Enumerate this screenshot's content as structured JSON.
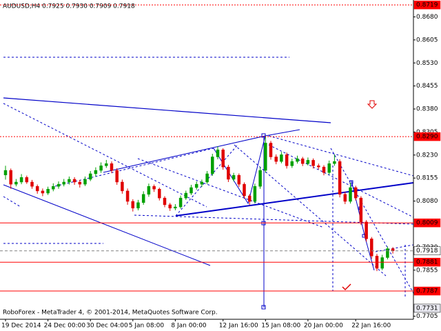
{
  "chart_data": {
    "type": "candlestick",
    "title": "AUDUSD,H4  0.7925 0.7930 0.7909 0.7918",
    "footer": "RoboForex - MetaTrader 4, © 2001-2014, MetaQuotes Software Corp.",
    "categories": [
      "19 Dec 2014",
      null,
      null,
      null,
      null,
      null,
      null,
      null,
      "24 Dec 00:00",
      null,
      null,
      null,
      null,
      null,
      null,
      null,
      "30 Dec 04:00",
      null,
      null,
      null,
      null,
      null,
      null,
      null,
      "5 Jan 08:00",
      null,
      null,
      null,
      null,
      null,
      null,
      null,
      "8 Jan 00:00",
      null,
      null,
      null,
      null,
      null,
      null,
      null,
      null,
      "12 Jan 16:00",
      null,
      null,
      null,
      null,
      null,
      null,
      null,
      "15 Jan 08:00",
      null,
      null,
      null,
      null,
      null,
      null,
      null,
      "20 Jan 00:00",
      null,
      null,
      null,
      null,
      null,
      null,
      null,
      null,
      "22 Jan 16:00",
      null,
      null,
      null,
      null,
      null,
      null,
      null
    ],
    "candles": [
      [
        0.8165,
        0.8195,
        0.815,
        0.818
      ],
      [
        0.818,
        0.8186,
        0.812,
        0.8135
      ],
      [
        0.8135,
        0.8152,
        0.8128,
        0.8142
      ],
      [
        0.8142,
        0.8168,
        0.8135,
        0.8157
      ],
      [
        0.8157,
        0.8163,
        0.8136,
        0.8142
      ],
      [
        0.8142,
        0.8149,
        0.812,
        0.8128
      ],
      [
        0.8128,
        0.8134,
        0.8104,
        0.8113
      ],
      [
        0.8113,
        0.8121,
        0.8096,
        0.8106
      ],
      [
        0.8106,
        0.8127,
        0.81,
        0.8119
      ],
      [
        0.8119,
        0.8138,
        0.8112,
        0.8128
      ],
      [
        0.8128,
        0.8144,
        0.812,
        0.8135
      ],
      [
        0.8135,
        0.8152,
        0.8128,
        0.8142
      ],
      [
        0.8142,
        0.816,
        0.8134,
        0.8151
      ],
      [
        0.8151,
        0.8158,
        0.8133,
        0.8142
      ],
      [
        0.8142,
        0.8149,
        0.8124,
        0.8135
      ],
      [
        0.8135,
        0.816,
        0.8129,
        0.8151
      ],
      [
        0.8151,
        0.8178,
        0.8145,
        0.8169
      ],
      [
        0.8169,
        0.819,
        0.816,
        0.818
      ],
      [
        0.818,
        0.8206,
        0.8172,
        0.8195
      ],
      [
        0.8195,
        0.8214,
        0.8188,
        0.8202
      ],
      [
        0.8202,
        0.8209,
        0.8171,
        0.818
      ],
      [
        0.818,
        0.8187,
        0.8133,
        0.8142
      ],
      [
        0.8142,
        0.815,
        0.8104,
        0.8113
      ],
      [
        0.8113,
        0.8121,
        0.8068,
        0.8079
      ],
      [
        0.8079,
        0.8086,
        0.8046,
        0.8057
      ],
      [
        0.8057,
        0.8084,
        0.805,
        0.8075
      ],
      [
        0.8075,
        0.8112,
        0.8068,
        0.8102
      ],
      [
        0.8102,
        0.8137,
        0.8094,
        0.8128
      ],
      [
        0.8128,
        0.8134,
        0.811,
        0.8119
      ],
      [
        0.8119,
        0.8124,
        0.8082,
        0.809
      ],
      [
        0.809,
        0.8096,
        0.806,
        0.8068
      ],
      [
        0.8068,
        0.8074,
        0.8048,
        0.8057
      ],
      [
        0.8057,
        0.807,
        0.805,
        0.8061
      ],
      [
        0.8061,
        0.8098,
        0.8055,
        0.809
      ],
      [
        0.809,
        0.8114,
        0.8084,
        0.8106
      ],
      [
        0.8106,
        0.8133,
        0.81,
        0.8124
      ],
      [
        0.8124,
        0.8144,
        0.8117,
        0.8135
      ],
      [
        0.8135,
        0.815,
        0.8126,
        0.8142
      ],
      [
        0.8142,
        0.8178,
        0.8136,
        0.8169
      ],
      [
        0.8169,
        0.8234,
        0.8162,
        0.8224
      ],
      [
        0.8224,
        0.8258,
        0.8216,
        0.8247
      ],
      [
        0.8247,
        0.8252,
        0.8182,
        0.8191
      ],
      [
        0.8191,
        0.8198,
        0.8142,
        0.8151
      ],
      [
        0.8151,
        0.8172,
        0.8144,
        0.8164
      ],
      [
        0.8164,
        0.817,
        0.8126,
        0.8135
      ],
      [
        0.8135,
        0.8141,
        0.8088,
        0.8097
      ],
      [
        0.8097,
        0.8103,
        0.8068,
        0.8079
      ],
      [
        0.8079,
        0.8137,
        0.8072,
        0.8128
      ],
      [
        0.8128,
        0.819,
        0.812,
        0.818
      ],
      [
        0.818,
        0.829,
        0.8172,
        0.8269
      ],
      [
        0.8269,
        0.8276,
        0.8215,
        0.8224
      ],
      [
        0.8224,
        0.8232,
        0.82,
        0.8209
      ],
      [
        0.8209,
        0.824,
        0.8203,
        0.8231
      ],
      [
        0.8231,
        0.8238,
        0.8186,
        0.8195
      ],
      [
        0.8195,
        0.8218,
        0.8188,
        0.8209
      ],
      [
        0.8209,
        0.8228,
        0.8202,
        0.8218
      ],
      [
        0.8218,
        0.8224,
        0.8194,
        0.8202
      ],
      [
        0.8202,
        0.8222,
        0.8196,
        0.8213
      ],
      [
        0.8213,
        0.8219,
        0.8186,
        0.8195
      ],
      [
        0.8195,
        0.8202,
        0.8183,
        0.8191
      ],
      [
        0.8191,
        0.8197,
        0.8164,
        0.8173
      ],
      [
        0.8173,
        0.8212,
        0.8166,
        0.8202
      ],
      [
        0.8202,
        0.8232,
        0.8195,
        0.8209
      ],
      [
        0.8209,
        0.8216,
        0.8092,
        0.8102
      ],
      [
        0.8102,
        0.811,
        0.807,
        0.8079
      ],
      [
        0.8079,
        0.814,
        0.8072,
        0.8124
      ],
      [
        0.8124,
        0.813,
        0.8082,
        0.809
      ],
      [
        0.809,
        0.8096,
        0.8002,
        0.8012
      ],
      [
        0.8012,
        0.8018,
        0.7948,
        0.7957
      ],
      [
        0.7957,
        0.7963,
        0.7892,
        0.7901
      ],
      [
        0.7901,
        0.7908,
        0.7852,
        0.7861
      ],
      [
        0.7861,
        0.7905,
        0.7855,
        0.7896
      ],
      [
        0.7896,
        0.7932,
        0.789,
        0.7925
      ],
      [
        0.7925,
        0.793,
        0.7909,
        0.7918
      ]
    ],
    "up_color": "#00a000",
    "down_color": "#e00000",
    "ylim": [
      0.7695,
      0.8735
    ],
    "yticks": [
      {
        "value": 0.868,
        "label": "0.8680"
      },
      0.8605,
      {
        "value": 0.853,
        "label": "0.8530"
      },
      0.8455,
      {
        "value": 0.838,
        "label": "0.8380"
      },
      0.8305,
      {
        "value": 0.823,
        "label": "0.8230"
      },
      0.8155,
      {
        "value": 0.808,
        "label": "0.8080"
      },
      {
        "value": 0.793,
        "label": "0.7930"
      },
      0.7855,
      {
        "value": 0.778,
        "label": "0.7780"
      },
      0.7705
    ],
    "levels": [
      {
        "value": 0.8719,
        "label": "0.8719",
        "color": "#ff0000",
        "style": "dotted"
      },
      {
        "value": 0.829,
        "label": "0.8290",
        "color": "#ff0000",
        "style": "dotted"
      },
      {
        "value": 0.8009,
        "label": "0.8009",
        "color": "#ff0000",
        "style": "solid"
      },
      {
        "value": 0.7918,
        "label": "0.7918",
        "color": "#ffffff",
        "style": "dashed"
      },
      {
        "value": 0.7881,
        "label": "0.7881",
        "color": "#ff0000",
        "style": "solid"
      },
      {
        "value": 0.7787,
        "label": "0.7787",
        "color": "#ff0000",
        "style": "solid"
      },
      {
        "value": 0.7731,
        "label": "0.7731",
        "color": "#e8e8f0",
        "style": "none"
      }
    ]
  }
}
